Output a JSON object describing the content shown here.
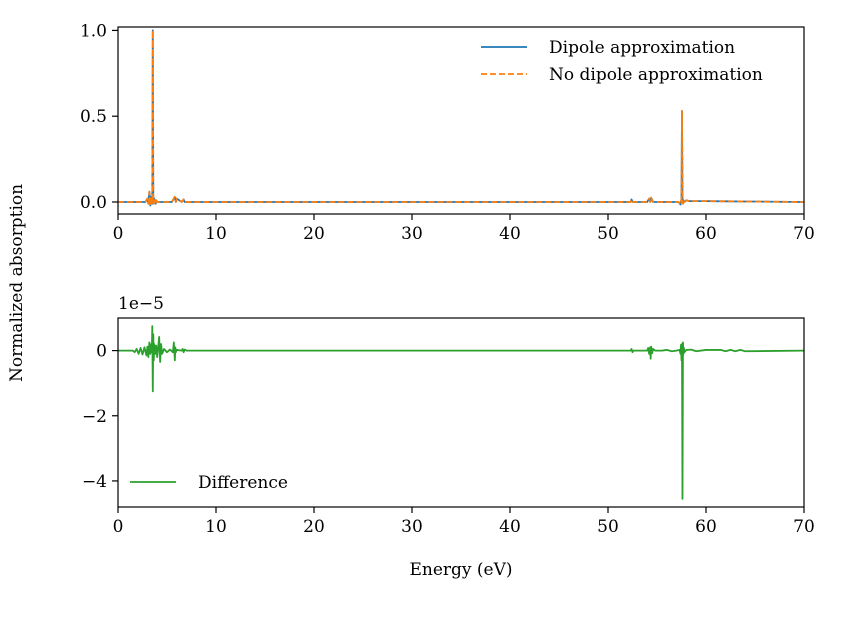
{
  "figure": {
    "shared_ylabel": "Normalized absorption",
    "colors": {
      "dipole": "#1f77b4",
      "no_dipole": "#ff7f0e",
      "difference": "#2ca02c",
      "axes": "#000000"
    }
  },
  "chart_data": [
    {
      "type": "line",
      "title": "",
      "xlabel": "",
      "ylabel": "Normalized absorption",
      "xlim": [
        0,
        70
      ],
      "ylim": [
        -0.07,
        1.02
      ],
      "xticks": [
        0,
        10,
        20,
        30,
        40,
        50,
        60,
        70
      ],
      "xticklabels": [
        "0",
        "10",
        "20",
        "30",
        "40",
        "50",
        "60",
        "70"
      ],
      "yticks": [
        0.0,
        0.5,
        1.0
      ],
      "yticklabels": [
        "0.0",
        "0.5",
        "1.0"
      ],
      "legend": {
        "placement": "top-right",
        "entries": [
          "Dipole approximation",
          "No dipole approximation"
        ]
      },
      "series": [
        {
          "name": "Dipole approximation",
          "style": "solid",
          "x": [
            0,
            2.8,
            3.0,
            3.1,
            3.2,
            3.3,
            3.4,
            3.45,
            3.5,
            3.55,
            3.6,
            3.65,
            3.7,
            3.75,
            3.8,
            3.85,
            3.9,
            4.0,
            4.2,
            5.5,
            5.8,
            5.9,
            6.0,
            6.5,
            6.7,
            6.8,
            7.0,
            52.3,
            52.4,
            52.5,
            54.0,
            54.2,
            54.3,
            54.4,
            54.6,
            54.8,
            57.2,
            57.4,
            57.5,
            57.55,
            57.6,
            57.65,
            57.7,
            57.8,
            58.0,
            58.3,
            60.0,
            62.0,
            64.0,
            70
          ],
          "y": [
            0,
            0,
            0.02,
            -0.01,
            0.06,
            -0.02,
            0.03,
            0.01,
            -0.01,
            1.0,
            0.02,
            -0.01,
            0.02,
            0.0,
            0.01,
            -0.01,
            0.01,
            0.0,
            0.0,
            0.0,
            0.03,
            0.0,
            0.02,
            0.0,
            0.015,
            0.0,
            0.0,
            0.0,
            0.015,
            0.0,
            0.0,
            0.02,
            0.0,
            0.025,
            0.0,
            0.0,
            0.0,
            -0.015,
            0.02,
            0.53,
            0.02,
            -0.01,
            0.01,
            0.0,
            0.01,
            0.005,
            0.005,
            0.004,
            0.003,
            0.0
          ]
        },
        {
          "name": "No dipole approximation",
          "style": "dashed",
          "x": [
            0,
            2.8,
            3.0,
            3.1,
            3.2,
            3.3,
            3.4,
            3.45,
            3.5,
            3.55,
            3.6,
            3.65,
            3.7,
            3.75,
            3.8,
            3.85,
            3.9,
            4.0,
            4.2,
            5.5,
            5.8,
            5.9,
            6.0,
            6.5,
            6.7,
            6.8,
            7.0,
            52.3,
            52.4,
            52.5,
            54.0,
            54.2,
            54.3,
            54.4,
            54.6,
            54.8,
            57.2,
            57.4,
            57.5,
            57.55,
            57.6,
            57.65,
            57.7,
            57.8,
            58.0,
            58.3,
            60.0,
            62.0,
            64.0,
            70
          ],
          "y": [
            0,
            0,
            0.02,
            -0.01,
            0.06,
            -0.02,
            0.03,
            0.01,
            -0.01,
            1.0,
            0.02,
            -0.01,
            0.02,
            0.0,
            0.01,
            -0.01,
            0.01,
            0.0,
            0.0,
            0.0,
            0.03,
            0.0,
            0.02,
            0.0,
            0.015,
            0.0,
            0.0,
            0.0,
            0.015,
            0.0,
            0.0,
            0.02,
            0.0,
            0.025,
            0.0,
            0.0,
            0.0,
            -0.015,
            0.02,
            0.53,
            0.02,
            -0.01,
            0.01,
            0.0,
            0.01,
            0.005,
            0.005,
            0.004,
            0.003,
            0.0
          ]
        }
      ]
    },
    {
      "type": "line",
      "title": "",
      "xlabel": "Energy (eV)",
      "ylabel": "",
      "offset_label": "1e−5",
      "xlim": [
        0,
        70
      ],
      "ylim": [
        -4.8,
        1.0
      ],
      "xticks": [
        0,
        10,
        20,
        30,
        40,
        50,
        60,
        70
      ],
      "xticklabels": [
        "0",
        "10",
        "20",
        "30",
        "40",
        "50",
        "60",
        "70"
      ],
      "yticks": [
        0,
        -2,
        -4
      ],
      "yticklabels": [
        "0",
        "−2",
        "−4"
      ],
      "legend": {
        "placement": "lower-left",
        "entries": [
          "Difference"
        ]
      },
      "series": [
        {
          "name": "Difference",
          "style": "solid",
          "x": [
            0,
            1.5,
            1.7,
            1.9,
            2.1,
            2.3,
            2.5,
            2.7,
            2.9,
            3.0,
            3.1,
            3.2,
            3.3,
            3.4,
            3.45,
            3.5,
            3.55,
            3.6,
            3.65,
            3.7,
            3.8,
            3.9,
            4.0,
            4.1,
            4.2,
            4.3,
            4.4,
            4.5,
            4.7,
            5.0,
            5.3,
            5.6,
            5.7,
            5.8,
            5.85,
            5.9,
            6.0,
            6.5,
            6.6,
            6.7,
            6.8,
            7.0,
            25.0,
            50.0,
            52.3,
            52.4,
            52.5,
            52.6,
            53.5,
            54.0,
            54.1,
            54.2,
            54.3,
            54.35,
            54.4,
            54.5,
            54.6,
            54.8,
            55.5,
            56.0,
            56.5,
            57.0,
            57.3,
            57.4,
            57.45,
            57.5,
            57.55,
            57.6,
            57.65,
            57.7,
            57.75,
            57.8,
            58.0,
            58.5,
            59.0,
            60.0,
            61.5,
            62.0,
            62.5,
            63.0,
            63.5,
            64.0,
            70
          ],
          "y": [
            0,
            0,
            -0.05,
            0.05,
            -0.1,
            0.08,
            -0.12,
            0.1,
            -0.15,
            0.12,
            -0.2,
            0.25,
            -0.1,
            0.2,
            -0.05,
            0.75,
            -1.25,
            0.5,
            -0.3,
            0.2,
            -0.1,
            0.15,
            -0.2,
            0.1,
            0.42,
            -0.35,
            0.2,
            -0.1,
            0.05,
            -0.05,
            0.03,
            -0.05,
            0.25,
            -0.3,
            0.1,
            -0.05,
            0.02,
            0.0,
            0.05,
            -0.05,
            0.03,
            0.0,
            0.0,
            0.0,
            0.0,
            0.05,
            -0.05,
            0.0,
            0.0,
            0.0,
            0.08,
            -0.1,
            0.1,
            -0.25,
            0.12,
            -0.08,
            0.05,
            0.0,
            0.0,
            0.02,
            -0.02,
            0.0,
            0.02,
            -0.1,
            0.18,
            -0.3,
            0.2,
            -4.55,
            0.25,
            -0.1,
            0.08,
            -0.05,
            0.02,
            0.03,
            -0.02,
            0.02,
            0.02,
            -0.02,
            0.02,
            -0.02,
            0.02,
            -0.02,
            0.0
          ]
        }
      ]
    }
  ]
}
